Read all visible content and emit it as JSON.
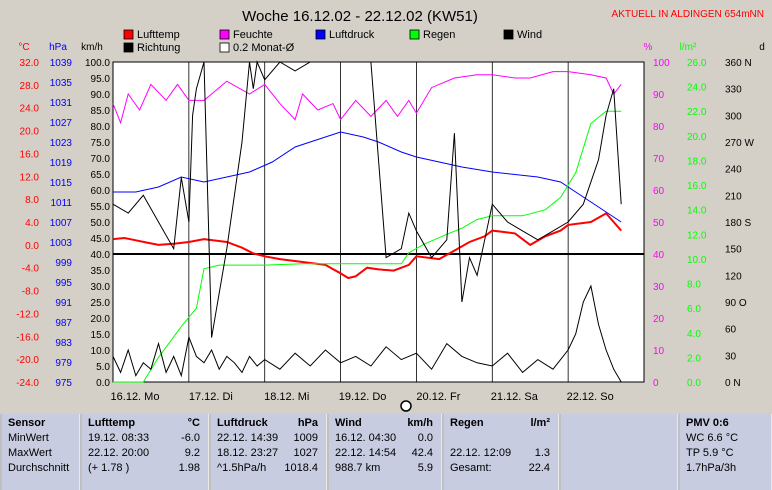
{
  "header": {
    "title": "Woche 16.12.02 - 22.12.02 (KW51)",
    "location": "AKTUELL IN ALDINGEN 654mNN"
  },
  "legend": [
    {
      "name": "Lufttemp",
      "color": "#ff0000"
    },
    {
      "name": "Feuchte",
      "color": "#ff00ff"
    },
    {
      "name": "Luftdruck",
      "color": "#0000ff"
    },
    {
      "name": "Regen",
      "color": "#00ff00"
    },
    {
      "name": "Wind",
      "color": "#000000"
    },
    {
      "name": "Richtung",
      "color": "#000000"
    },
    {
      "name": "0.2 Monat-Ø",
      "color": "#ffffff"
    }
  ],
  "axis_units": {
    "temp": "°C",
    "press": "hPa",
    "wind": "km/h",
    "hum": "%",
    "rain": "l/m²",
    "dir": "d"
  },
  "chart_data": {
    "type": "line",
    "x_labels": [
      "16.12. Mo",
      "17.12. Di",
      "18.12. Mi",
      "19.12. Do",
      "20.12. Fr",
      "21.12. Sa",
      "22.12. So"
    ],
    "axes": {
      "temp": {
        "label": "°C",
        "min": -24,
        "max": 32,
        "ticks": [
          "32.0",
          "28.0",
          "24.0",
          "20.0",
          "16.0",
          "12.0",
          "8.0",
          "4.0",
          "0.0",
          "-4.0",
          "-8.0",
          "-12.0",
          "-16.0",
          "-20.0",
          "-24.0"
        ]
      },
      "press": {
        "label": "hPa",
        "min": 975,
        "max": 1039,
        "ticks": [
          "1039",
          "1035",
          "1031",
          "1027",
          "1023",
          "1019",
          "1015",
          "1011",
          "1007",
          "1003",
          "999",
          "995",
          "991",
          "987",
          "983",
          "979",
          "975"
        ]
      },
      "wind": {
        "label": "km/h",
        "min": 0,
        "max": 100,
        "ticks": [
          "100.0",
          "95.0",
          "90.0",
          "85.0",
          "80.0",
          "75.0",
          "70.0",
          "65.0",
          "60.0",
          "55.0",
          "50.0",
          "45.0",
          "40.0",
          "35.0",
          "30.0",
          "25.0",
          "20.0",
          "15.0",
          "10.0",
          "5.0",
          "0.0"
        ]
      },
      "hum": {
        "label": "%",
        "min": 0,
        "max": 100,
        "ticks": [
          "100",
          "90",
          "80",
          "70",
          "60",
          "50",
          "40",
          "30",
          "20",
          "10",
          "0"
        ]
      },
      "rain": {
        "label": "l/m²",
        "min": 0,
        "max": 26,
        "ticks": [
          "26.0",
          "24.0",
          "22.0",
          "20.0",
          "18.0",
          "16.0",
          "14.0",
          "12.0",
          "10.0",
          "8.0",
          "6.0",
          "4.0",
          "2.0",
          "0.0"
        ]
      },
      "dir": {
        "label": "d",
        "min": 0,
        "max": 360,
        "ticks": [
          "360 N",
          "330",
          "300",
          "270 W",
          "240",
          "210",
          "180 S",
          "150",
          "120",
          "90 O",
          "60",
          "30",
          "0 N"
        ]
      }
    },
    "series": [
      {
        "name": "Lufttemp",
        "axis": "temp",
        "color": "#ff0000",
        "x": [
          0,
          0.15,
          0.3,
          0.45,
          0.6,
          0.8,
          1.0,
          1.2,
          1.5,
          1.7,
          1.85,
          2.0,
          2.2,
          2.5,
          2.8,
          3.0,
          3.1,
          3.2,
          3.35,
          3.5,
          3.7,
          3.9,
          4.0,
          4.3,
          4.5,
          4.7,
          4.9,
          5.0,
          5.3,
          5.5,
          5.7,
          5.9,
          6.0,
          6.3,
          6.5,
          6.7
        ],
        "y": [
          1.0,
          1.2,
          0.8,
          0.4,
          0.0,
          0.2,
          0.5,
          1.0,
          0.5,
          -0.5,
          -1.5,
          -2.0,
          -2.5,
          -3.0,
          -3.5,
          -5.0,
          -5.8,
          -5.5,
          -4.0,
          -4.3,
          -4.5,
          -3.5,
          -2.0,
          -2.5,
          -1.0,
          0.5,
          1.5,
          2.5,
          2.0,
          0.0,
          1.5,
          2.5,
          3.5,
          4.0,
          5.5,
          2.5
        ]
      },
      {
        "name": "Feuchte",
        "axis": "hum",
        "color": "#ff00ff",
        "x": [
          0,
          0.1,
          0.2,
          0.35,
          0.5,
          0.7,
          0.85,
          1.0,
          1.2,
          1.5,
          1.8,
          2.0,
          2.2,
          2.4,
          2.5,
          2.7,
          2.9,
          3.0,
          3.2,
          3.4,
          3.6,
          3.75,
          3.9,
          4.0,
          4.2,
          4.5,
          4.8,
          5.0,
          5.3,
          5.5,
          5.8,
          6.0,
          6.3,
          6.5,
          6.6,
          6.7
        ],
        "y": [
          87,
          81,
          90,
          85,
          93,
          88,
          93,
          88,
          88,
          94,
          90,
          93,
          87,
          82,
          90,
          85,
          87,
          82,
          88,
          83,
          88,
          83,
          88,
          84,
          92,
          95,
          96,
          96,
          95,
          95,
          97,
          97,
          96,
          95,
          90,
          93
        ]
      },
      {
        "name": "Luftdruck",
        "axis": "press",
        "color": "#0000ff",
        "x": [
          0,
          0.3,
          0.6,
          0.9,
          1.2,
          1.5,
          1.8,
          2.1,
          2.4,
          2.7,
          3.0,
          3.3,
          3.5,
          3.8,
          4.0,
          4.3,
          4.6,
          4.8,
          5.0,
          5.3,
          5.6,
          5.9,
          6.1,
          6.3,
          6.5,
          6.7
        ],
        "y": [
          1013,
          1013,
          1014,
          1016,
          1015,
          1016,
          1017,
          1019,
          1022,
          1023.5,
          1025,
          1024,
          1023,
          1021,
          1020,
          1019,
          1018,
          1017.5,
          1017,
          1016.5,
          1016,
          1015,
          1013,
          1011,
          1009,
          1007
        ]
      },
      {
        "name": "Regen",
        "axis": "rain",
        "color": "#00ff00",
        "x": [
          0,
          0.4,
          0.6,
          0.9,
          1.1,
          1.2,
          1.4,
          1.5,
          2.0,
          2.5,
          3.0,
          3.5,
          3.8,
          3.9,
          4.1,
          4.4,
          4.6,
          4.8,
          5.0,
          5.4,
          5.7,
          5.9,
          6.1,
          6.3,
          6.5,
          6.6,
          6.7
        ],
        "y": [
          0,
          0,
          2,
          4.5,
          6,
          9.2,
          9.5,
          9.5,
          9.5,
          9.6,
          9.6,
          9.6,
          9.6,
          10.5,
          11.2,
          12.0,
          12.5,
          13.2,
          13.5,
          13.5,
          14.0,
          15.0,
          17.0,
          21,
          22,
          22,
          22
        ]
      },
      {
        "name": "Wind",
        "axis": "wind",
        "color": "#000000",
        "x": [
          0,
          0.1,
          0.2,
          0.3,
          0.4,
          0.5,
          0.6,
          0.7,
          0.8,
          0.9,
          1.0,
          1.1,
          1.2,
          1.3,
          1.4,
          1.5,
          1.6,
          1.7,
          1.8,
          1.9,
          2.0,
          2.2,
          2.4,
          2.6,
          2.8,
          3.0,
          3.2,
          3.4,
          3.6,
          3.8,
          4.0,
          4.2,
          4.4,
          4.6,
          4.8,
          5.0,
          5.2,
          5.4,
          5.6,
          5.8,
          6.0,
          6.1,
          6.2,
          6.3,
          6.4,
          6.5,
          6.6,
          6.7
        ],
        "y": [
          8,
          3,
          10,
          2,
          6,
          4,
          12,
          3,
          8,
          2,
          14,
          8,
          6,
          10,
          4,
          8,
          6,
          3,
          8,
          5,
          7,
          4,
          9,
          5,
          10,
          6,
          8,
          5,
          11,
          7,
          9,
          4,
          12,
          8,
          6,
          5,
          9,
          3,
          7,
          4,
          10,
          15,
          25,
          30,
          18,
          10,
          4,
          0
        ]
      },
      {
        "name": "Richtung",
        "axis": "dir",
        "color": "#000000",
        "x": [
          0,
          0.2,
          0.4,
          0.6,
          0.8,
          0.9,
          1.0,
          1.05,
          1.1,
          1.2,
          1.3,
          1.5,
          1.7,
          1.8,
          1.85,
          1.9,
          2.0,
          2.2,
          2.4,
          2.6,
          2.8,
          3.0,
          3.2,
          3.4,
          3.6,
          3.8,
          3.9,
          4.0,
          4.2,
          4.4,
          4.5,
          4.6,
          4.7,
          4.8,
          4.9,
          5.0,
          5.2,
          5.4,
          5.6,
          5.8,
          6.0,
          6.2,
          6.4,
          6.5,
          6.6,
          6.7
        ],
        "y": [
          200,
          190,
          210,
          180,
          150,
          230,
          180,
          300,
          330,
          360,
          50,
          150,
          270,
          360,
          330,
          360,
          340,
          360,
          350,
          360,
          360,
          360,
          360,
          360,
          140,
          150,
          190,
          170,
          140,
          160,
          280,
          90,
          140,
          120,
          160,
          200,
          180,
          170,
          160,
          170,
          180,
          200,
          250,
          300,
          330,
          200
        ]
      }
    ]
  },
  "table": [
    {
      "header": [
        "Sensor",
        ""
      ],
      "rows": [
        [
          "MinWert",
          ""
        ],
        [
          "MaxWert",
          ""
        ],
        [
          "Durchschnitt",
          ""
        ]
      ]
    },
    {
      "header": [
        "Lufttemp",
        "°C"
      ],
      "rows": [
        [
          "19.12.  08:33",
          "-6.0"
        ],
        [
          "22.12.  20:00",
          "9.2"
        ],
        [
          "(+ 1.78 )",
          "1.98"
        ]
      ]
    },
    {
      "header": [
        "Luftdruck",
        "hPa"
      ],
      "rows": [
        [
          "22.12.  14:39",
          "1009"
        ],
        [
          "18.12.  23:27",
          "1027"
        ],
        [
          "^1.5hPa/h",
          "1018.4"
        ]
      ]
    },
    {
      "header": [
        "Wind",
        "km/h"
      ],
      "rows": [
        [
          "16.12.  04:30",
          "0.0"
        ],
        [
          "22.12.  14:54",
          "42.4"
        ],
        [
          "988.7 km",
          "5.9"
        ]
      ]
    },
    {
      "header": [
        "Regen",
        "l/m²"
      ],
      "rows": [
        [
          "",
          ""
        ],
        [
          "22.12.  12:09",
          "1.3"
        ],
        [
          "Gesamt:",
          "22.4"
        ]
      ]
    },
    {
      "header": [
        "",
        ""
      ],
      "rows": [
        [
          "",
          ""
        ],
        [
          "",
          ""
        ],
        [
          "",
          ""
        ]
      ]
    },
    {
      "header": [
        "PMV 0:6",
        ""
      ],
      "rows": [
        [
          "WC 6.6 °C",
          ""
        ],
        [
          "TP 5.9 °C",
          ""
        ],
        [
          "1.7hPa/3h",
          ""
        ]
      ]
    }
  ]
}
